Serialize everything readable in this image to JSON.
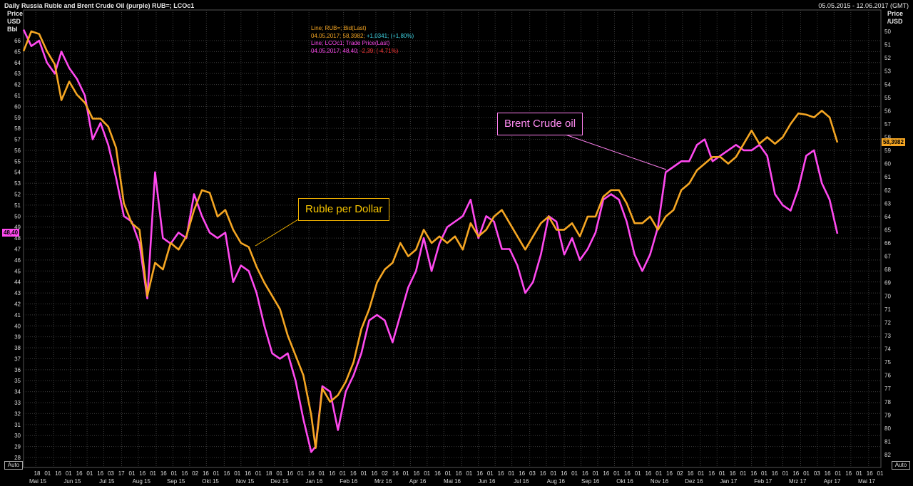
{
  "header": {
    "title": "Daily Russia Ruble and Brent Crude Oil (purple) RUB=; LCOc1",
    "date_range": "05.05.2015 - 12.06.2017 (GMT)"
  },
  "axes": {
    "left_label": [
      "Price",
      "USD",
      "Bbl"
    ],
    "right_label": [
      "Price",
      "/USD"
    ],
    "auto_label": "Auto"
  },
  "legend": {
    "line1": "Line; RUB=; Bid(Last)",
    "line2_date": "04.05.2017;",
    "line2_value": "58,3982;",
    "line2_change": "+1,0341; (+1,80%)",
    "line3": "Line; LCOc1; Trade Price(Last)",
    "line4_date": "04.05.2017;",
    "line4_value": "48,40;",
    "line4_change": "-2,39; (-4,71%)"
  },
  "annotations": {
    "ruble": "Ruble per Dollar",
    "brent": "Brent Crude oil"
  },
  "last_value_tags": {
    "brent": "48,40",
    "ruble": "58,3982"
  },
  "colors": {
    "ruble": "#f5a623",
    "brent": "#ff49ef",
    "grid": "#3c3c3c",
    "background": "#000000"
  },
  "chart_data": {
    "type": "line",
    "title": "Daily Russia Ruble and Brent Crude Oil (purple) RUB=; LCOc1",
    "left_axis": {
      "label": "Price USD Bbl",
      "range": [
        28,
        67
      ],
      "ticks": [
        28,
        29,
        30,
        31,
        32,
        33,
        34,
        35,
        36,
        37,
        38,
        39,
        40,
        41,
        42,
        43,
        44,
        45,
        46,
        47,
        48,
        49,
        50,
        51,
        52,
        53,
        54,
        55,
        56,
        57,
        58,
        59,
        60,
        61,
        62,
        63,
        64,
        65,
        66
      ]
    },
    "right_axis": {
      "label": "Price /USD",
      "range": [
        83,
        49
      ],
      "inverted": true,
      "ticks": [
        50,
        51,
        52,
        53,
        54,
        55,
        56,
        57,
        58,
        59,
        60,
        61,
        62,
        63,
        64,
        65,
        66,
        67,
        68,
        69,
        70,
        71,
        72,
        73,
        74,
        75,
        76,
        77,
        78,
        79,
        80,
        81,
        82
      ]
    },
    "x_month_labels": [
      "Mai 15",
      "Jun 15",
      "Jul 15",
      "Aug 15",
      "Sep 15",
      "Okt 15",
      "Nov 15",
      "Dez 15",
      "Jan 16",
      "Feb 16",
      "Mrz 16",
      "Apr 16",
      "Mai 16",
      "Jun 16",
      "Jul 16",
      "Aug 16",
      "Sep 16",
      "Okt 16",
      "Nov 16",
      "Dez 16",
      "Jan 17",
      "Feb 17",
      "Mrz 17",
      "Apr 17",
      "Mai 17"
    ],
    "x_day_labels": [
      "18",
      "01",
      "16",
      "01",
      "16",
      "01",
      "16",
      "03",
      "17",
      "01",
      "16",
      "01",
      "16",
      "01",
      "16",
      "02",
      "16",
      "01",
      "16",
      "01",
      "16",
      "01",
      "18",
      "01",
      "16",
      "01",
      "16",
      "01",
      "16",
      "01",
      "16",
      "01",
      "16",
      "02",
      "16",
      "01",
      "16",
      "01",
      "16",
      "01",
      "16",
      "01",
      "16",
      "01",
      "16",
      "01",
      "16",
      "03",
      "16",
      "01",
      "16",
      "01",
      "16",
      "01",
      "16",
      "01",
      "16",
      "01",
      "16",
      "01",
      "16",
      "02",
      "16",
      "01",
      "16",
      "01",
      "16",
      "01",
      "16",
      "01",
      "16",
      "01",
      "16",
      "01",
      "03",
      "16",
      "01",
      "16",
      "01",
      "16",
      "01"
    ],
    "x_range": [
      "2015-05-05",
      "2017-06-12"
    ],
    "grid": true,
    "series": [
      {
        "name": "Ruble per Dollar",
        "axis": "right",
        "points": [
          [
            "2015-05-05",
            51.5
          ],
          [
            "2015-05-12",
            50.0
          ],
          [
            "2015-05-19",
            50.2
          ],
          [
            "2015-05-26",
            51.5
          ],
          [
            "2015-06-02",
            52.5
          ],
          [
            "2015-06-08",
            55.2
          ],
          [
            "2015-06-15",
            53.8
          ],
          [
            "2015-06-22",
            54.8
          ],
          [
            "2015-06-29",
            55.4
          ],
          [
            "2015-07-06",
            56.6
          ],
          [
            "2015-07-13",
            56.6
          ],
          [
            "2015-07-20",
            57.2
          ],
          [
            "2015-07-27",
            58.8
          ],
          [
            "2015-08-03",
            63.0
          ],
          [
            "2015-08-10",
            64.5
          ],
          [
            "2015-08-17",
            65.0
          ],
          [
            "2015-08-24",
            70.0
          ],
          [
            "2015-08-31",
            67.5
          ],
          [
            "2015-09-07",
            68.0
          ],
          [
            "2015-09-14",
            66.0
          ],
          [
            "2015-09-21",
            66.5
          ],
          [
            "2015-09-28",
            65.5
          ],
          [
            "2015-10-05",
            63.5
          ],
          [
            "2015-10-12",
            62.0
          ],
          [
            "2015-10-19",
            62.2
          ],
          [
            "2015-10-26",
            64.0
          ],
          [
            "2015-11-02",
            63.5
          ],
          [
            "2015-11-09",
            65.0
          ],
          [
            "2015-11-16",
            66.0
          ],
          [
            "2015-11-23",
            66.3
          ],
          [
            "2015-11-30",
            67.8
          ],
          [
            "2015-12-07",
            69.0
          ],
          [
            "2015-12-14",
            70.0
          ],
          [
            "2015-12-21",
            71.0
          ],
          [
            "2015-12-28",
            73.0
          ],
          [
            "2016-01-04",
            74.5
          ],
          [
            "2016-01-11",
            76.0
          ],
          [
            "2016-01-18",
            79.0
          ],
          [
            "2016-01-22",
            81.5
          ],
          [
            "2016-01-28",
            77.0
          ],
          [
            "2016-02-04",
            78.0
          ],
          [
            "2016-02-11",
            77.5
          ],
          [
            "2016-02-18",
            76.5
          ],
          [
            "2016-02-25",
            75.0
          ],
          [
            "2016-03-03",
            72.5
          ],
          [
            "2016-03-10",
            71.0
          ],
          [
            "2016-03-17",
            69.0
          ],
          [
            "2016-03-24",
            68.0
          ],
          [
            "2016-03-31",
            67.5
          ],
          [
            "2016-04-07",
            66.0
          ],
          [
            "2016-04-14",
            67.0
          ],
          [
            "2016-04-21",
            66.5
          ],
          [
            "2016-04-28",
            65.0
          ],
          [
            "2016-05-05",
            66.0
          ],
          [
            "2016-05-12",
            65.5
          ],
          [
            "2016-05-19",
            66.0
          ],
          [
            "2016-05-26",
            65.5
          ],
          [
            "2016-06-02",
            66.5
          ],
          [
            "2016-06-09",
            64.5
          ],
          [
            "2016-06-16",
            65.5
          ],
          [
            "2016-06-23",
            65.0
          ],
          [
            "2016-06-30",
            64.0
          ],
          [
            "2016-07-07",
            63.5
          ],
          [
            "2016-07-14",
            64.5
          ],
          [
            "2016-07-21",
            65.5
          ],
          [
            "2016-07-28",
            66.5
          ],
          [
            "2016-08-04",
            65.5
          ],
          [
            "2016-08-11",
            64.5
          ],
          [
            "2016-08-18",
            64.0
          ],
          [
            "2016-08-25",
            65.0
          ],
          [
            "2016-09-01",
            65.0
          ],
          [
            "2016-09-08",
            64.5
          ],
          [
            "2016-09-15",
            65.5
          ],
          [
            "2016-09-22",
            64.0
          ],
          [
            "2016-09-29",
            64.0
          ],
          [
            "2016-10-06",
            62.5
          ],
          [
            "2016-10-13",
            62.0
          ],
          [
            "2016-10-20",
            62.0
          ],
          [
            "2016-10-27",
            63.0
          ],
          [
            "2016-11-03",
            64.5
          ],
          [
            "2016-11-10",
            64.5
          ],
          [
            "2016-11-17",
            64.0
          ],
          [
            "2016-11-24",
            65.0
          ],
          [
            "2016-12-01",
            64.0
          ],
          [
            "2016-12-08",
            63.5
          ],
          [
            "2016-12-15",
            62.0
          ],
          [
            "2016-12-22",
            61.5
          ],
          [
            "2016-12-29",
            60.5
          ],
          [
            "2017-01-05",
            60.0
          ],
          [
            "2017-01-12",
            59.5
          ],
          [
            "2017-01-19",
            59.5
          ],
          [
            "2017-01-26",
            60.0
          ],
          [
            "2017-02-02",
            59.5
          ],
          [
            "2017-02-09",
            58.5
          ],
          [
            "2017-02-16",
            57.5
          ],
          [
            "2017-02-23",
            58.5
          ],
          [
            "2017-03-02",
            58.0
          ],
          [
            "2017-03-09",
            58.5
          ],
          [
            "2017-03-16",
            58.0
          ],
          [
            "2017-03-23",
            57.0
          ],
          [
            "2017-03-30",
            56.2
          ],
          [
            "2017-04-06",
            56.3
          ],
          [
            "2017-04-13",
            56.5
          ],
          [
            "2017-04-20",
            56.0
          ],
          [
            "2017-04-27",
            56.5
          ],
          [
            "2017-05-04",
            58.4
          ]
        ]
      },
      {
        "name": "Brent Crude oil",
        "axis": "left",
        "points": [
          [
            "2015-05-05",
            67.0
          ],
          [
            "2015-05-12",
            65.5
          ],
          [
            "2015-05-19",
            66.0
          ],
          [
            "2015-05-26",
            64.0
          ],
          [
            "2015-06-02",
            63.0
          ],
          [
            "2015-06-08",
            65.0
          ],
          [
            "2015-06-15",
            63.5
          ],
          [
            "2015-06-22",
            62.5
          ],
          [
            "2015-06-29",
            61.0
          ],
          [
            "2015-07-06",
            57.0
          ],
          [
            "2015-07-13",
            58.5
          ],
          [
            "2015-07-20",
            56.5
          ],
          [
            "2015-07-27",
            53.5
          ],
          [
            "2015-08-03",
            50.0
          ],
          [
            "2015-08-10",
            49.5
          ],
          [
            "2015-08-17",
            47.5
          ],
          [
            "2015-08-24",
            42.5
          ],
          [
            "2015-08-31",
            54.0
          ],
          [
            "2015-09-07",
            48.0
          ],
          [
            "2015-09-14",
            47.5
          ],
          [
            "2015-09-21",
            48.5
          ],
          [
            "2015-09-28",
            48.0
          ],
          [
            "2015-10-05",
            52.0
          ],
          [
            "2015-10-12",
            50.0
          ],
          [
            "2015-10-19",
            48.5
          ],
          [
            "2015-10-26",
            48.0
          ],
          [
            "2015-11-02",
            48.5
          ],
          [
            "2015-11-09",
            44.0
          ],
          [
            "2015-11-16",
            45.5
          ],
          [
            "2015-11-23",
            45.0
          ],
          [
            "2015-11-30",
            43.0
          ],
          [
            "2015-12-07",
            40.0
          ],
          [
            "2015-12-14",
            37.5
          ],
          [
            "2015-12-21",
            37.0
          ],
          [
            "2015-12-28",
            37.5
          ],
          [
            "2016-01-04",
            35.0
          ],
          [
            "2016-01-11",
            31.5
          ],
          [
            "2016-01-18",
            28.5
          ],
          [
            "2016-01-22",
            29.0
          ],
          [
            "2016-01-28",
            34.5
          ],
          [
            "2016-02-04",
            34.0
          ],
          [
            "2016-02-11",
            30.5
          ],
          [
            "2016-02-18",
            34.0
          ],
          [
            "2016-02-25",
            35.5
          ],
          [
            "2016-03-03",
            37.5
          ],
          [
            "2016-03-10",
            40.5
          ],
          [
            "2016-03-17",
            41.0
          ],
          [
            "2016-03-24",
            40.5
          ],
          [
            "2016-03-31",
            38.5
          ],
          [
            "2016-04-07",
            41.0
          ],
          [
            "2016-04-14",
            43.5
          ],
          [
            "2016-04-21",
            45.0
          ],
          [
            "2016-04-28",
            48.0
          ],
          [
            "2016-05-05",
            45.0
          ],
          [
            "2016-05-12",
            47.5
          ],
          [
            "2016-05-19",
            49.0
          ],
          [
            "2016-05-26",
            49.5
          ],
          [
            "2016-06-02",
            50.0
          ],
          [
            "2016-06-09",
            51.5
          ],
          [
            "2016-06-16",
            48.0
          ],
          [
            "2016-06-23",
            50.0
          ],
          [
            "2016-06-30",
            49.5
          ],
          [
            "2016-07-07",
            47.0
          ],
          [
            "2016-07-14",
            47.0
          ],
          [
            "2016-07-21",
            45.5
          ],
          [
            "2016-07-28",
            43.0
          ],
          [
            "2016-08-04",
            44.0
          ],
          [
            "2016-08-11",
            46.5
          ],
          [
            "2016-08-18",
            50.0
          ],
          [
            "2016-08-25",
            49.5
          ],
          [
            "2016-09-01",
            46.5
          ],
          [
            "2016-09-08",
            48.0
          ],
          [
            "2016-09-15",
            46.0
          ],
          [
            "2016-09-22",
            47.0
          ],
          [
            "2016-09-29",
            48.5
          ],
          [
            "2016-10-06",
            51.5
          ],
          [
            "2016-10-13",
            52.0
          ],
          [
            "2016-10-20",
            51.5
          ],
          [
            "2016-10-27",
            49.5
          ],
          [
            "2016-11-03",
            46.5
          ],
          [
            "2016-11-10",
            45.0
          ],
          [
            "2016-11-17",
            46.5
          ],
          [
            "2016-11-24",
            49.0
          ],
          [
            "2016-12-01",
            54.0
          ],
          [
            "2016-12-08",
            54.5
          ],
          [
            "2016-12-15",
            55.0
          ],
          [
            "2016-12-22",
            55.0
          ],
          [
            "2016-12-29",
            56.5
          ],
          [
            "2017-01-05",
            57.0
          ],
          [
            "2017-01-12",
            55.0
          ],
          [
            "2017-01-19",
            55.5
          ],
          [
            "2017-01-26",
            56.0
          ],
          [
            "2017-02-02",
            56.5
          ],
          [
            "2017-02-09",
            56.0
          ],
          [
            "2017-02-16",
            56.0
          ],
          [
            "2017-02-23",
            56.5
          ],
          [
            "2017-03-02",
            55.5
          ],
          [
            "2017-03-09",
            52.0
          ],
          [
            "2017-03-16",
            51.0
          ],
          [
            "2017-03-23",
            50.5
          ],
          [
            "2017-03-30",
            52.5
          ],
          [
            "2017-04-06",
            55.5
          ],
          [
            "2017-04-13",
            56.0
          ],
          [
            "2017-04-20",
            53.0
          ],
          [
            "2017-04-27",
            51.5
          ],
          [
            "2017-05-04",
            48.4
          ]
        ]
      }
    ]
  }
}
